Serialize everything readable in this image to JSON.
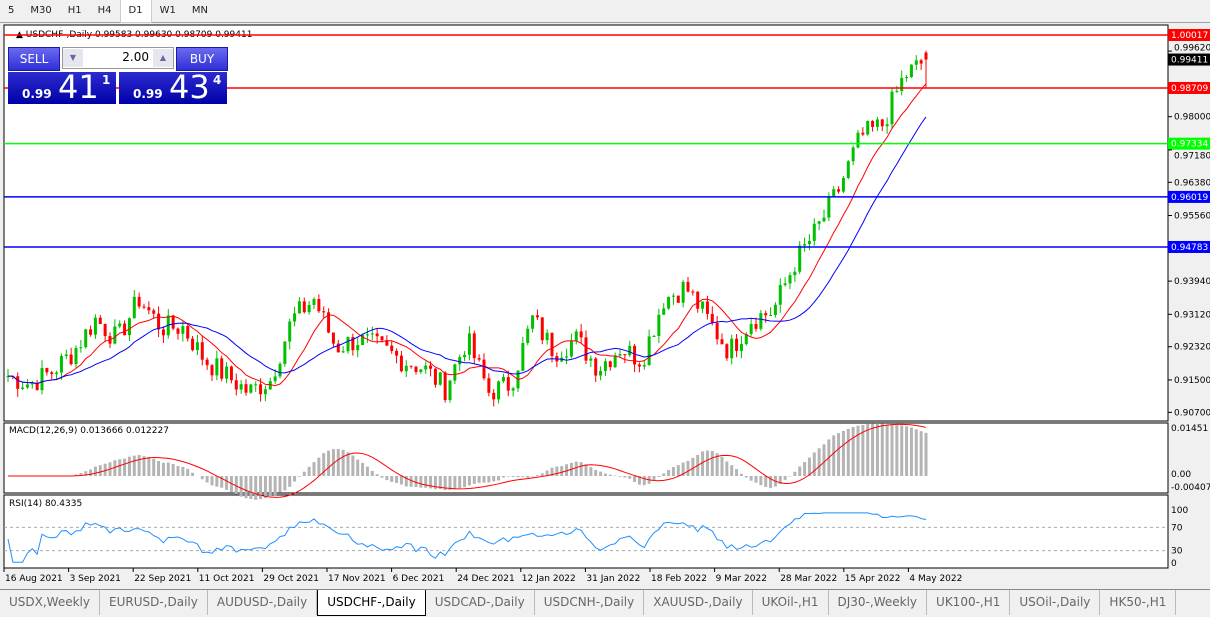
{
  "timeframes": [
    "5",
    "M30",
    "H1",
    "H4",
    "D1",
    "W1",
    "MN"
  ],
  "active_timeframe": "D1",
  "chart": {
    "header": "USDCHF-,Daily  0.99583 0.99630 0.98709 0.99411"
  },
  "trade_panel": {
    "sell_label": "SELL",
    "buy_label": "BUY",
    "volume": "2.00",
    "sell_prefix": "0.99",
    "sell_big": "41",
    "sell_pip": "1",
    "buy_prefix": "0.99",
    "buy_big": "43",
    "buy_pip": "4"
  },
  "chart_data": {
    "type": "candlestick",
    "symbol": "USDCHF-",
    "timeframe": "Daily",
    "ohlc": {
      "open": 0.99583,
      "high": 0.9963,
      "low": 0.98709,
      "close": 0.99411
    },
    "y_ticks": [
      "0.99620",
      "0.98000",
      "0.97180",
      "0.96380",
      "0.95560",
      "0.93940",
      "0.93120",
      "0.92320",
      "0.91500",
      "0.90700"
    ],
    "hlines": [
      {
        "price": "1.00017",
        "color": "#ff0000"
      },
      {
        "price": "0.98709",
        "color": "#ff0000"
      },
      {
        "price": "0.97334",
        "color": "#00ff00"
      },
      {
        "price": "0.96019",
        "color": "#0000ff"
      },
      {
        "price": "0.94783",
        "color": "#0000ff"
      }
    ],
    "current_price": "0.99411",
    "x_labels": [
      "16 Aug 2021",
      "3 Sep 2021",
      "22 Sep 2021",
      "11 Oct 2021",
      "29 Oct 2021",
      "17 Nov 2021",
      "6 Dec 2021",
      "24 Dec 2021",
      "12 Jan 2022",
      "31 Jan 2022",
      "18 Feb 2022",
      "9 Mar 2022",
      "28 Mar 2022",
      "15 Apr 2022",
      "4 May 2022"
    ],
    "close_anchors": [
      0.916,
      0.914,
      0.917,
      0.922,
      0.93,
      0.925,
      0.935,
      0.928,
      0.928,
      0.92,
      0.916,
      0.912,
      0.915,
      0.93,
      0.935,
      0.923,
      0.925,
      0.923,
      0.92,
      0.918,
      0.913,
      0.925,
      0.912,
      0.914,
      0.93,
      0.922,
      0.925,
      0.918,
      0.923,
      0.92,
      0.935,
      0.938,
      0.93,
      0.922,
      0.93,
      0.932,
      0.944,
      0.952,
      0.962,
      0.975,
      0.978,
      0.99,
      0.994
    ],
    "macd": {
      "label": "MACD(12,26,9) 0.013666 0.012227",
      "ticks": [
        "0.01451",
        "0.00",
        "-0.004071"
      ]
    },
    "rsi": {
      "label": "RSI(14) 80.4335",
      "ticks": [
        "100",
        "70",
        "30",
        "0"
      ],
      "levels": [
        70,
        30
      ]
    },
    "colors": {
      "bull": "#00c000",
      "bear": "#ff0000",
      "ma_fast": "#ff0000",
      "ma_slow": "#0000ff",
      "rsi": "#1e90ff",
      "macd_hist": "#b4b4b4",
      "macd_signal": "#ff0000"
    }
  },
  "symbol_tabs": [
    "USDX,Weekly",
    "EURUSD-,Daily",
    "AUDUSD-,Daily",
    "USDCHF-,Daily",
    "USDCAD-,Daily",
    "USDCNH-,Daily",
    "XAUUSD-,Daily",
    "UKOil-,H1",
    "DJ30-,Weekly",
    "UK100-,H1",
    "USOil-,Daily",
    "HK50-,H1"
  ],
  "active_tab": "USDCHF-,Daily"
}
